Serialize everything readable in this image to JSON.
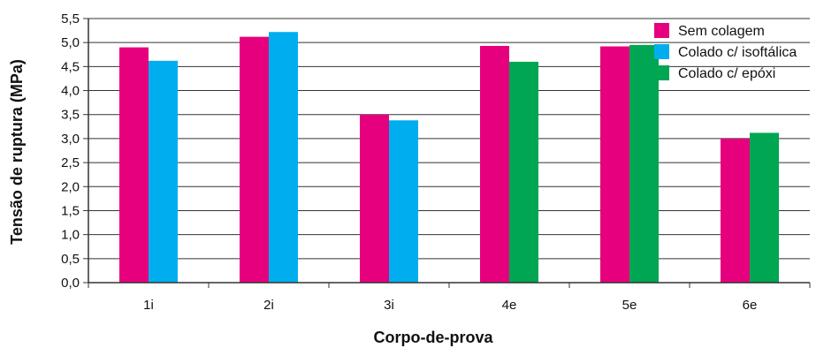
{
  "chart_data": {
    "type": "bar",
    "title": "",
    "xlabel": "Corpo-de-prova",
    "ylabel": "Tensão de ruptura (MPa)",
    "ylim": [
      0,
      5.5
    ],
    "yticks": [
      "0,0",
      "0,5",
      "1,0",
      "1,5",
      "2,0",
      "2,5",
      "3,0",
      "3,5",
      "4,0",
      "4,5",
      "5,0",
      "5,5"
    ],
    "categories": [
      "1i",
      "2i",
      "3i",
      "4e",
      "5e",
      "6e"
    ],
    "grid": true,
    "legend_position": "top-right",
    "series": [
      {
        "name": "Sem colagem",
        "color": "#e6007e",
        "values": [
          4.9,
          5.12,
          3.5,
          4.93,
          4.92,
          3.0
        ]
      },
      {
        "name": "Colado c/ isoftálica",
        "color": "#00aeef",
        "values": [
          4.62,
          5.22,
          3.38,
          null,
          null,
          null
        ]
      },
      {
        "name": "Colado c/ epóxi",
        "color": "#00a651",
        "values": [
          null,
          null,
          null,
          4.6,
          4.95,
          3.12
        ]
      }
    ]
  }
}
